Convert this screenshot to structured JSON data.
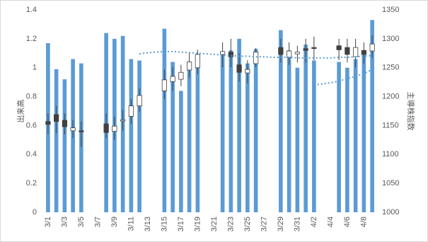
{
  "chart_data": {
    "type": "combo",
    "y_label": "出来高",
    "y2_label": "主導株指数",
    "categories": [
      "3/1",
      null,
      "3/3",
      null,
      "3/5",
      null,
      "3/7",
      null,
      "3/9",
      null,
      "3/11",
      null,
      "3/13",
      null,
      "3/15",
      null,
      "3/17",
      null,
      "3/19",
      null,
      "3/21",
      null,
      "3/23",
      null,
      "3/25",
      null,
      "3/27",
      null,
      "3/29",
      null,
      "3/31",
      null,
      "4/2",
      null,
      "4/4",
      null,
      "4/6",
      null,
      "4/8",
      null
    ],
    "ylim": [
      0,
      1.4
    ],
    "yticks": [
      0,
      0.2,
      0.4,
      0.6,
      0.8,
      1,
      1.2,
      1.4
    ],
    "y2lim": [
      1000,
      1350
    ],
    "y2ticks": [
      1000,
      1050,
      1100,
      1150,
      1200,
      1250,
      1300,
      1350
    ],
    "series": [
      {
        "type": "bar",
        "color": "#5b9bd5",
        "values": [
          1.17,
          0.99,
          0.92,
          1.06,
          1.03,
          null,
          null,
          1.24,
          1.2,
          1.22,
          1.06,
          1.05,
          null,
          null,
          1.27,
          1.04,
          0.84,
          0.99,
          1.09,
          null,
          null,
          1.11,
          1.12,
          1.2,
          1.03,
          1.13,
          null,
          null,
          1.26,
          1.12,
          1.0,
          1.16,
          1.05,
          null,
          null,
          1.04,
          1.0,
          1.06,
          1.1,
          1.33
        ]
      },
      {
        "type": "candlestick",
        "axis": "y2",
        "color": "#404040",
        "up_color": "#ffffff",
        "down_color": "#404040",
        "open": [
          1157,
          1169,
          1159,
          1141,
          1141,
          null,
          null,
          1153,
          1140,
          1158,
          1166,
          1184,
          null,
          null,
          1210,
          1226,
          1230,
          1246,
          1250,
          null,
          null,
          1273,
          1277,
          1255,
          1241,
          1257,
          null,
          null,
          1285,
          1268,
          1274,
          1283,
          1285,
          null,
          null,
          1288,
          1285,
          1269,
          1280,
          1279
        ],
        "high": [
          1171,
          1184,
          1171,
          1159,
          1157,
          null,
          null,
          1171,
          1165,
          1177,
          1196,
          1214,
          null,
          null,
          1247,
          1251,
          1255,
          1275,
          1281,
          null,
          null,
          1294,
          1300,
          1275,
          1263,
          1284,
          null,
          null,
          1300,
          1294,
          1288,
          1300,
          1304,
          null,
          null,
          1300,
          1300,
          1300,
          1294,
          1306
        ],
        "low": [
          1135,
          1137,
          1135,
          1128,
          1113,
          null,
          null,
          1128,
          1125,
          1141,
          1153,
          1174,
          null,
          null,
          1196,
          1210,
          1218,
          1233,
          1239,
          null,
          null,
          1251,
          1251,
          1226,
          1223,
          1251,
          null,
          null,
          1259,
          1255,
          1259,
          1259,
          1263,
          null,
          null,
          1263,
          1259,
          1251,
          1257,
          1267
        ],
        "close": [
          1152,
          1157,
          1148,
          1146,
          1140,
          null,
          null,
          1138,
          1149,
          1160,
          1184,
          1202,
          null,
          null,
          1229,
          1235,
          1242,
          1260,
          1273,
          null,
          null,
          1278,
          1269,
          1242,
          1247,
          1277,
          null,
          null,
          1273,
          1279,
          1277,
          1280,
          1284,
          null,
          null,
          1281,
          1273,
          1285,
          1273,
          1291
        ]
      },
      {
        "type": "line",
        "axis": "y2",
        "color": "#5b9bd5",
        "dash": true,
        "values": [
          null,
          null,
          null,
          null,
          null,
          null,
          null,
          null,
          null,
          null,
          null,
          1274,
          1276,
          1277,
          1278,
          1278,
          1277,
          1276,
          1275,
          1274,
          1273,
          1272,
          1271,
          1270,
          1270,
          1269,
          1269,
          1268,
          1268,
          1268,
          1267,
          1267,
          1267,
          1267,
          1267,
          1268,
          1268,
          1269,
          1270,
          1271
        ]
      },
      {
        "type": "line",
        "axis": "y2",
        "color": "#5b9bd5",
        "dash": true,
        "values": [
          null,
          null,
          null,
          null,
          null,
          null,
          null,
          null,
          null,
          null,
          null,
          null,
          null,
          null,
          null,
          null,
          null,
          null,
          null,
          null,
          null,
          null,
          null,
          null,
          null,
          null,
          null,
          null,
          null,
          null,
          null,
          null,
          1220,
          1222,
          1224,
          1227,
          1231,
          1235,
          1240,
          1247
        ]
      }
    ]
  }
}
